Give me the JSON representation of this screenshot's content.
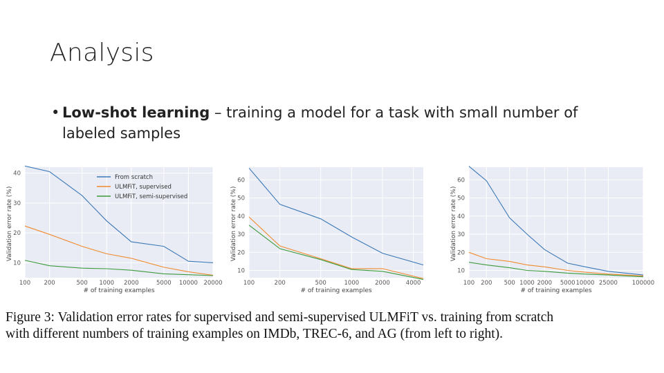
{
  "slide": {
    "title": "Analysis",
    "bullet_bold": "Low-shot learning",
    "bullet_rest_line1": " – training a model for a task with small number of",
    "bullet_line2": "labeled samples"
  },
  "caption": {
    "line1": "Figure 3:  Validation error rates for supervised and semi-supervised ULMFiT vs.  training from scratch",
    "line2": "with different numbers of training examples on IMDb, TREC-6, and AG (from left to right)."
  },
  "colors": {
    "plot_bg": "#e9ecf4",
    "grid": "#ffffff",
    "from_scratch": "#3b78b8",
    "supervised": "#f08a2e",
    "semi_supervised": "#3a9a3a"
  },
  "chart_data": [
    {
      "type": "line",
      "x_scale": "log",
      "grid": true,
      "legend_position": "top-right",
      "xlabel": "# of training examples",
      "ylabel": "Validation error rate (%)",
      "xticks": [
        100,
        200,
        500,
        1000,
        2000,
        5000,
        10000,
        20000
      ],
      "xtick_labels": [
        "100",
        "200",
        "500",
        "1000",
        "2000",
        "5000",
        "10000",
        "20000"
      ],
      "yticks": [
        10,
        20,
        30,
        40
      ],
      "ytick_labels": [
        "10",
        "20",
        "30",
        "40"
      ],
      "xlim": [
        100,
        20000
      ],
      "ylim": [
        5,
        42
      ],
      "x": [
        100,
        200,
        500,
        1000,
        2000,
        5000,
        10000,
        20000
      ],
      "series": [
        {
          "name": "From scratch",
          "values": [
            42.4,
            40.5,
            32.5,
            24.0,
            17.0,
            15.5,
            10.5,
            10.0
          ]
        },
        {
          "name": "ULMFiT, supervised",
          "values": [
            22.3,
            19.5,
            15.5,
            13.0,
            11.5,
            8.5,
            7.0,
            5.8
          ]
        },
        {
          "name": "ULMFiT, semi-supervised",
          "values": [
            10.8,
            9.0,
            8.2,
            8.0,
            7.5,
            6.3,
            6.0,
            5.7
          ]
        }
      ]
    },
    {
      "type": "line",
      "x_scale": "log",
      "grid": true,
      "xlabel": "# of training examples",
      "ylabel": "Validation error rate (%)",
      "xticks": [
        100,
        200,
        500,
        1000,
        2000,
        4000
      ],
      "xtick_labels": [
        "100",
        "200",
        "500",
        "1000",
        "2000",
        "4000"
      ],
      "yticks": [
        10,
        20,
        30,
        40,
        50,
        60
      ],
      "ytick_labels": [
        "10",
        "20",
        "30",
        "40",
        "50",
        "60"
      ],
      "xlim": [
        100,
        5000
      ],
      "ylim": [
        6,
        67
      ],
      "x": [
        100,
        200,
        500,
        1000,
        2000,
        5000
      ],
      "series": [
        {
          "name": "From scratch",
          "values": [
            66.5,
            46.5,
            38.5,
            28.5,
            19.5,
            13.0
          ]
        },
        {
          "name": "ULMFiT, supervised",
          "values": [
            39.5,
            23.5,
            16.5,
            11.0,
            11.0,
            5.5
          ]
        },
        {
          "name": "ULMFiT, semi-supervised",
          "values": [
            35.0,
            22.0,
            16.0,
            10.5,
            9.5,
            5.0
          ]
        }
      ]
    },
    {
      "type": "line",
      "x_scale": "log",
      "grid": true,
      "xlabel": "# of training examples",
      "ylabel": "Validation error rate (%)",
      "xticks": [
        100,
        200,
        500,
        1000,
        2000,
        5000,
        10000,
        25000,
        100000
      ],
      "xtick_labels": [
        "100",
        "200",
        "500",
        "1000",
        "2000",
        "5000",
        "10000",
        "25000",
        "100000"
      ],
      "yticks": [
        10,
        20,
        30,
        40,
        50,
        60
      ],
      "ytick_labels": [
        "10",
        "20",
        "30",
        "40",
        "50",
        "60"
      ],
      "xlim": [
        100,
        100000
      ],
      "ylim": [
        6,
        67
      ],
      "x": [
        100,
        200,
        500,
        1000,
        2000,
        5000,
        10000,
        25000,
        50000,
        100000
      ],
      "series": [
        {
          "name": "From scratch",
          "values": [
            67.5,
            59.5,
            39.0,
            30.0,
            21.5,
            14.0,
            12.0,
            9.5,
            8.5,
            7.5
          ]
        },
        {
          "name": "ULMFiT, supervised",
          "values": [
            20.0,
            16.5,
            15.0,
            13.0,
            12.0,
            10.0,
            9.0,
            8.0,
            7.5,
            7.0
          ]
        },
        {
          "name": "ULMFiT, semi-supervised",
          "values": [
            14.5,
            13.0,
            11.5,
            10.0,
            9.5,
            8.5,
            8.0,
            7.5,
            7.0,
            6.5
          ]
        }
      ]
    }
  ]
}
